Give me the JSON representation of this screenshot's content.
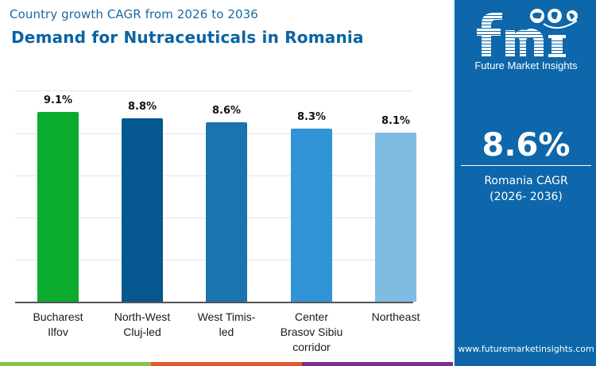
{
  "header": {
    "subtitle": "Country growth CAGR from 2026 to 2036",
    "title": "Demand for Nutraceuticals in Romania"
  },
  "chart_data": {
    "type": "bar",
    "title": "Demand for Nutraceuticals in Romania",
    "subtitle": "Country growth CAGR from 2026 to 2036",
    "categories": [
      "Bucharest Ilfov",
      "North-West Cluj-led",
      "West Timis-led",
      "Center Brasov Sibiu corridor",
      "Northeast"
    ],
    "category_lines": [
      [
        "Bucharest",
        "Ilfov"
      ],
      [
        "North-West",
        "Cluj-led"
      ],
      [
        "West Timis-",
        "led"
      ],
      [
        "Center",
        "Brasov Sibiu",
        "corridor"
      ],
      [
        "Northeast"
      ]
    ],
    "values": [
      9.1,
      8.8,
      8.6,
      8.3,
      8.1
    ],
    "value_labels": [
      "9.1%",
      "8.8%",
      "8.6%",
      "8.3%",
      "8.1%"
    ],
    "bar_colors": [
      "#0aab2f",
      "#06568f",
      "#1b74ae",
      "#3094d6",
      "#80bce2"
    ],
    "xlabel": "",
    "ylabel": "",
    "y_axis_visible": false,
    "grid": true,
    "legend": "none"
  },
  "side_panel": {
    "brand": "fmi",
    "brand_name": "Future Market Insights",
    "cagr_value": "8.6%",
    "cagr_label_line1": "Romania CAGR",
    "cagr_label_line2": "(2026- 2036)",
    "website": "www.futuremarketinsights.com",
    "background_color": "#0d67aa"
  },
  "footer_strip": {
    "colors": [
      "#8bc34a",
      "#e4572e",
      "#7b2d8b"
    ]
  }
}
